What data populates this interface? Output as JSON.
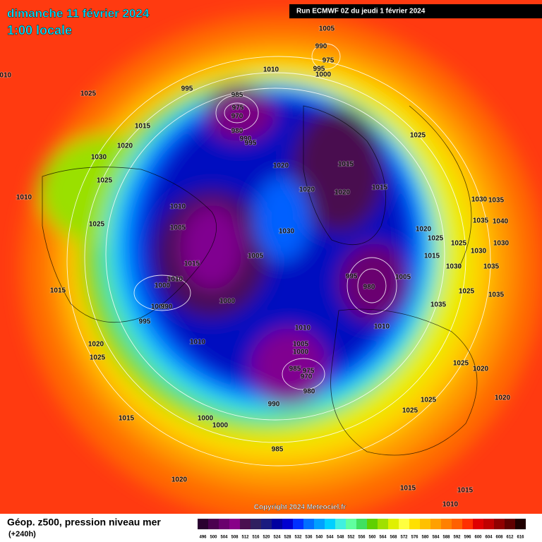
{
  "header": {
    "date": "dimanche 11 février 2024",
    "time": "1:00 locale",
    "run": "Run ECMWF 0Z du jeudi 1 février 2024"
  },
  "map": {
    "pressure_labels": [
      1005,
      990,
      975,
      995,
      1000,
      1010,
      995,
      1025,
      985,
      975,
      970,
      980,
      990,
      995,
      1015,
      1020,
      1030,
      1025,
      1010,
      1020,
      1015,
      1020,
      1020,
      1015,
      1025,
      1010,
      1005,
      1025,
      1030,
      1005,
      1015,
      1010,
      1000,
      1000,
      990,
      1000,
      995,
      1015,
      1010,
      1010,
      995,
      980,
      1005,
      1020,
      1025,
      1015,
      1030,
      1025,
      1030,
      1035,
      1035,
      1040,
      1030,
      1030,
      1035,
      1025,
      1035,
      1035,
      1010,
      1005,
      1000,
      985,
      975,
      970,
      980,
      990,
      1020,
      1025,
      1015,
      1000,
      1000,
      1025,
      1020,
      1020,
      1025,
      1025,
      985,
      1020,
      1015,
      1015,
      1010,
      1010
    ]
  },
  "footer": {
    "title": "Géop. z500, pression niveau mer",
    "lead": "(+240h)",
    "copyright": "Copyright 2024 Meteociel.fr"
  },
  "legend": {
    "values": [
      496,
      500,
      504,
      508,
      512,
      516,
      520,
      524,
      528,
      532,
      536,
      540,
      544,
      548,
      552,
      556,
      560,
      564,
      568,
      572,
      576,
      580,
      584,
      588,
      592,
      596,
      600,
      604,
      608,
      612,
      616
    ],
    "colors": [
      "#2a0030",
      "#4b0050",
      "#6a006e",
      "#880088",
      "#4a1050",
      "#302060",
      "#1a1a80",
      "#0000a0",
      "#0000d0",
      "#0030ff",
      "#0070ff",
      "#00a0ff",
      "#00d0ff",
      "#40f0e0",
      "#60ffa0",
      "#40e060",
      "#60d000",
      "#a0e000",
      "#e0f000",
      "#ffff40",
      "#ffe000",
      "#ffc000",
      "#ffa000",
      "#ff8000",
      "#ff6000",
      "#ff3000",
      "#e00000",
      "#c00000",
      "#900000",
      "#600000",
      "#200000"
    ]
  }
}
